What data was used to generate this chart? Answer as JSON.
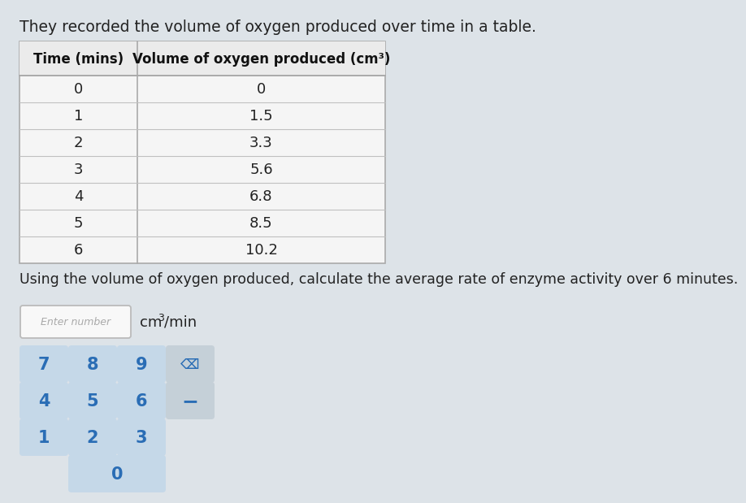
{
  "title_text": "They recorded the volume of oxygen produced over time in a table.",
  "col1_header": "Time (mins)",
  "col2_header": "Volume of oxygen produced (cm³)",
  "time_values": [
    0,
    1,
    2,
    3,
    4,
    5,
    6
  ],
  "volume_values": [
    "0",
    "1.5",
    "3.3",
    "5.6",
    "6.8",
    "8.5",
    "10.2"
  ],
  "question_text": "Using the volume of oxygen produced, calculate the average rate of enzyme activity over 6 minutes.",
  "input_placeholder": "Enter number",
  "unit_text": "cm",
  "unit_super": "3",
  "unit_suffix": "/min",
  "keypad_rows": [
    [
      "7",
      "8",
      "9",
      "⌫"
    ],
    [
      "4",
      "5",
      "6",
      "−"
    ],
    [
      "1",
      "2",
      "3",
      ""
    ],
    [
      "",
      "0",
      "",
      ""
    ]
  ],
  "bg_color": "#dde3e8",
  "table_bg": "#f5f5f5",
  "table_line_color": "#c8c8c8",
  "text_color": "#222222",
  "header_text_color": "#111111",
  "key_bg": "#c5d8e8",
  "key_blue_text": "#2a6db5",
  "key_backspace_bg": "#c5d0d8",
  "key_minus_bg": "#c5d0d8",
  "input_box_bg": "#f8f8f8",
  "input_box_border": "#bbbbbb"
}
